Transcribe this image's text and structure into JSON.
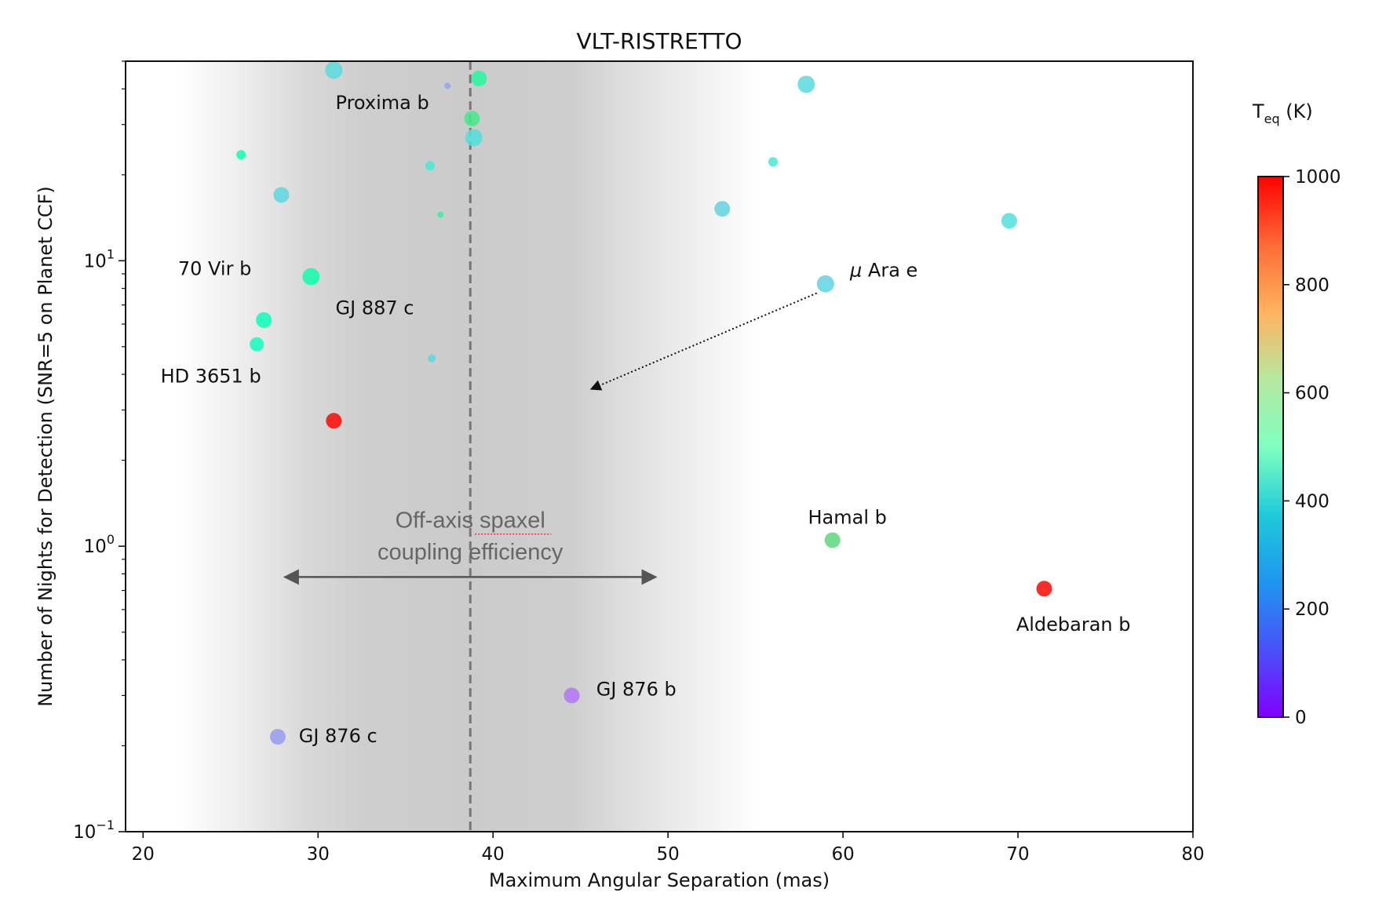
{
  "chart_data": {
    "type": "scatter",
    "title": "VLT-RISTRETTO",
    "xlabel": "Maximum Angular Separation (mas)",
    "ylabel": "Number of Nights for Detection (SNR=5 on Planet CCF)",
    "xlim": [
      19,
      80
    ],
    "ylim": [
      0.1,
      50
    ],
    "yscale": "log",
    "xticks": [
      20,
      30,
      40,
      50,
      60,
      70,
      80
    ],
    "yticks": [
      {
        "value": 0.1,
        "base": "10",
        "exp": "−1"
      },
      {
        "value": 1,
        "base": "10",
        "exp": "0"
      },
      {
        "value": 10,
        "base": "10",
        "exp": "1"
      }
    ],
    "colorbar": {
      "label_main": "T",
      "label_sub": "eq",
      "label_unit": " (K)",
      "range": [
        0,
        1000
      ],
      "ticks": [
        0,
        200,
        400,
        600,
        800,
        1000
      ],
      "colormap": "rainbow"
    },
    "vline_x": 38.7,
    "shade_center": 38.7,
    "shade_text": [
      "Off-axis spaxel",
      "coupling efficiency"
    ],
    "span_arrow": {
      "x1": 28.1,
      "x2": 49.3,
      "y": 0.78
    },
    "points": [
      {
        "x": 30.9,
        "y": 46.5,
        "teq": 330,
        "r": 11
      },
      {
        "x": 37.4,
        "y": 41.0,
        "teq": 230,
        "r": 4
      },
      {
        "x": 39.2,
        "y": 43.5,
        "teq": 570,
        "r": 10
      },
      {
        "x": 57.9,
        "y": 41.5,
        "teq": 330,
        "r": 11
      },
      {
        "x": 38.8,
        "y": 31.5,
        "teq": 640,
        "r": 10
      },
      {
        "x": 38.9,
        "y": 27.0,
        "teq": 340,
        "r": 11
      },
      {
        "x": 25.6,
        "y": 23.5,
        "teq": 530,
        "r": 6
      },
      {
        "x": 36.4,
        "y": 21.5,
        "teq": 360,
        "r": 6
      },
      {
        "x": 56.0,
        "y": 22.2,
        "teq": 370,
        "r": 6
      },
      {
        "x": 27.9,
        "y": 17.0,
        "teq": 320,
        "r": 10
      },
      {
        "x": 37.0,
        "y": 14.5,
        "teq": 590,
        "r": 4
      },
      {
        "x": 53.1,
        "y": 15.2,
        "teq": 310,
        "r": 10
      },
      {
        "x": 69.5,
        "y": 13.8,
        "teq": 340,
        "r": 10
      },
      {
        "x": 29.6,
        "y": 8.8,
        "teq": 530,
        "r": 11
      },
      {
        "x": 59.0,
        "y": 8.3,
        "teq": 310,
        "r": 11
      },
      {
        "x": 26.9,
        "y": 6.2,
        "teq": 480,
        "r": 10
      },
      {
        "x": 26.5,
        "y": 5.1,
        "teq": 470,
        "r": 9
      },
      {
        "x": 36.5,
        "y": 4.55,
        "teq": 320,
        "r": 5
      },
      {
        "x": 30.9,
        "y": 2.75,
        "teq": 990,
        "r": 10
      },
      {
        "x": 59.4,
        "y": 1.05,
        "teq": 680,
        "r": 10
      },
      {
        "x": 71.5,
        "y": 0.71,
        "teq": 990,
        "r": 10
      },
      {
        "x": 44.5,
        "y": 0.3,
        "teq": 150,
        "r": 10
      },
      {
        "x": 27.7,
        "y": 0.215,
        "teq": 210,
        "r": 10
      }
    ],
    "labels": [
      {
        "text": "Proxima b",
        "x": 31.0,
        "y": 34.0
      },
      {
        "text": "70 Vir b",
        "x": 22.0,
        "y": 8.9
      },
      {
        "text": "GJ 887 c",
        "x": 31.0,
        "y": 6.5
      },
      {
        "text": "HD 3651 b",
        "x": 21.0,
        "y": 3.75
      },
      {
        "text": "Hamal b",
        "x": 58.0,
        "y": 1.2
      },
      {
        "text": "Aldebaran b",
        "x": 69.9,
        "y": 0.505
      },
      {
        "text": "GJ 876 b",
        "x": 45.9,
        "y": 0.3
      },
      {
        "text": "GJ 876 c",
        "x": 28.9,
        "y": 0.206
      }
    ],
    "mu_label": {
      "greek": "μ",
      "rest": " Ara e",
      "x": 60.4,
      "y": 8.8
    },
    "dotted_arrow": {
      "x1": 58.5,
      "y1": 7.7,
      "x2": 45.6,
      "y2": 3.55
    }
  }
}
